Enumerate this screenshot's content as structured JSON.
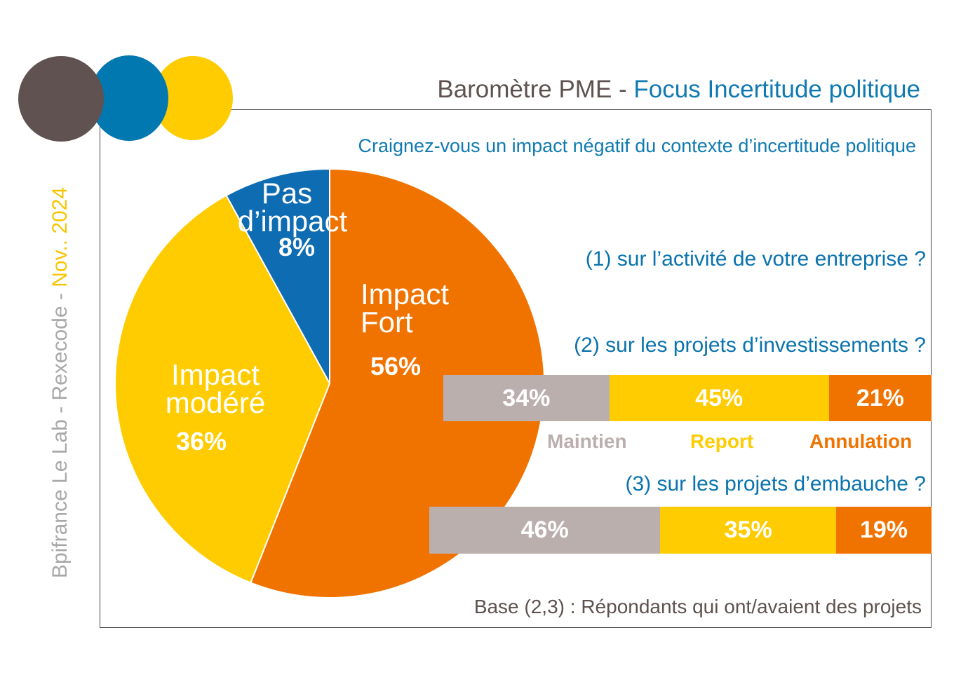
{
  "header": {
    "title_main": "Baromètre PME - ",
    "title_accent": "Focus Incertitude politique",
    "source_prefix": "Bpifrance Le Lab - Rexecode - ",
    "source_date": "Nov.. 2024"
  },
  "question": "Craignez-vous un impact négatif du contexte d’incertitude politique",
  "sub_questions": [
    "(1) sur l’activité de votre entreprise ?",
    "(2) sur les projets d’investissements ?",
    "(3) sur les projets d’embauche ?"
  ],
  "footnote": "Base (2,3) : Répondants qui ont/avaient des projets",
  "colors": {
    "brown": "#5f5250",
    "blue": "#0178b0",
    "yellow": "#fecc00",
    "orange": "#f07300",
    "grey": "#bbafae",
    "pie_blue": "#0e6cb2"
  },
  "chart_data": [
    {
      "type": "pie",
      "question": "(1) sur l’activité de votre entreprise ?",
      "slices": [
        {
          "label_line1": "Impact",
          "label_line2": "Fort",
          "value": 56,
          "value_label": "56%",
          "color": "#f07300"
        },
        {
          "label_line1": "Impact",
          "label_line2": "modéré",
          "value": 36,
          "value_label": "36%",
          "color": "#fecc00"
        },
        {
          "label_line1": "Pas",
          "label_line2": "d’impact",
          "value": 8,
          "value_label": "8%",
          "color": "#0e6cb2"
        }
      ]
    },
    {
      "type": "bar",
      "stacked": true,
      "orientation": "horizontal",
      "categories": [
        "(2) sur les projets d’investissements ?",
        "(3) sur les projets d’embauche ?"
      ],
      "series": [
        {
          "name": "Maintien",
          "values": [
            34,
            46
          ],
          "labels": [
            "34%",
            "46%"
          ],
          "color": "#bbafae"
        },
        {
          "name": "Report",
          "values": [
            45,
            35
          ],
          "labels": [
            "45%",
            "35%"
          ],
          "color": "#fecc00"
        },
        {
          "name": "Annulation",
          "values": [
            21,
            19
          ],
          "labels": [
            "21%",
            "19%"
          ],
          "color": "#f07300"
        }
      ]
    }
  ]
}
